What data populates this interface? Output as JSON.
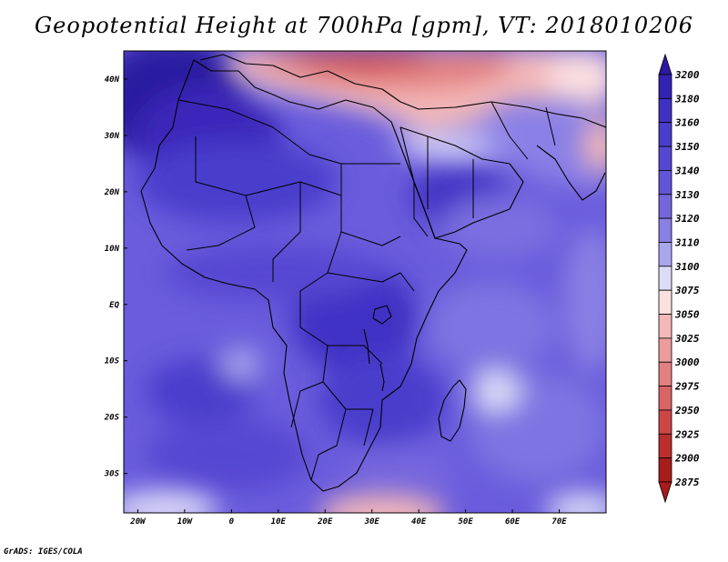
{
  "title": "Geopotential Height at 700hPa [gpm], VT: 2018010206",
  "credit": "GrADS: IGES/COLA",
  "map": {
    "lon_range": [
      -23,
      80
    ],
    "lat_range": [
      -37,
      45
    ],
    "lon_ticks": [
      {
        "value": -20,
        "label": "20W"
      },
      {
        "value": -10,
        "label": "10W"
      },
      {
        "value": 0,
        "label": "0"
      },
      {
        "value": 10,
        "label": "10E"
      },
      {
        "value": 20,
        "label": "20E"
      },
      {
        "value": 30,
        "label": "30E"
      },
      {
        "value": 40,
        "label": "40E"
      },
      {
        "value": 50,
        "label": "50E"
      },
      {
        "value": 60,
        "label": "60E"
      },
      {
        "value": 70,
        "label": "70E"
      }
    ],
    "lat_ticks": [
      {
        "value": 40,
        "label": "40N"
      },
      {
        "value": 30,
        "label": "30N"
      },
      {
        "value": 20,
        "label": "20N"
      },
      {
        "value": 10,
        "label": "10N"
      },
      {
        "value": 0,
        "label": "EQ"
      },
      {
        "value": -10,
        "label": "10S"
      },
      {
        "value": -20,
        "label": "20S"
      },
      {
        "value": -30,
        "label": "30S"
      }
    ]
  },
  "colorbar": {
    "levels": [
      "3200",
      "3180",
      "3160",
      "3150",
      "3140",
      "3130",
      "3120",
      "3110",
      "3100",
      "3075",
      "3050",
      "3025",
      "3000",
      "2975",
      "2950",
      "2925",
      "2900",
      "2875"
    ],
    "colors": [
      "#2b1aa0",
      "#3422b4",
      "#4030c4",
      "#4a3ccc",
      "#5646d2",
      "#6254d8",
      "#7566de",
      "#8a7fe4",
      "#aaa6ee",
      "#dcdcf8",
      "#fbe0e0",
      "#f4b8b8",
      "#ec9c9c",
      "#e38080",
      "#d96464",
      "#cc4646",
      "#bc2e2e",
      "#a81c1c"
    ]
  }
}
